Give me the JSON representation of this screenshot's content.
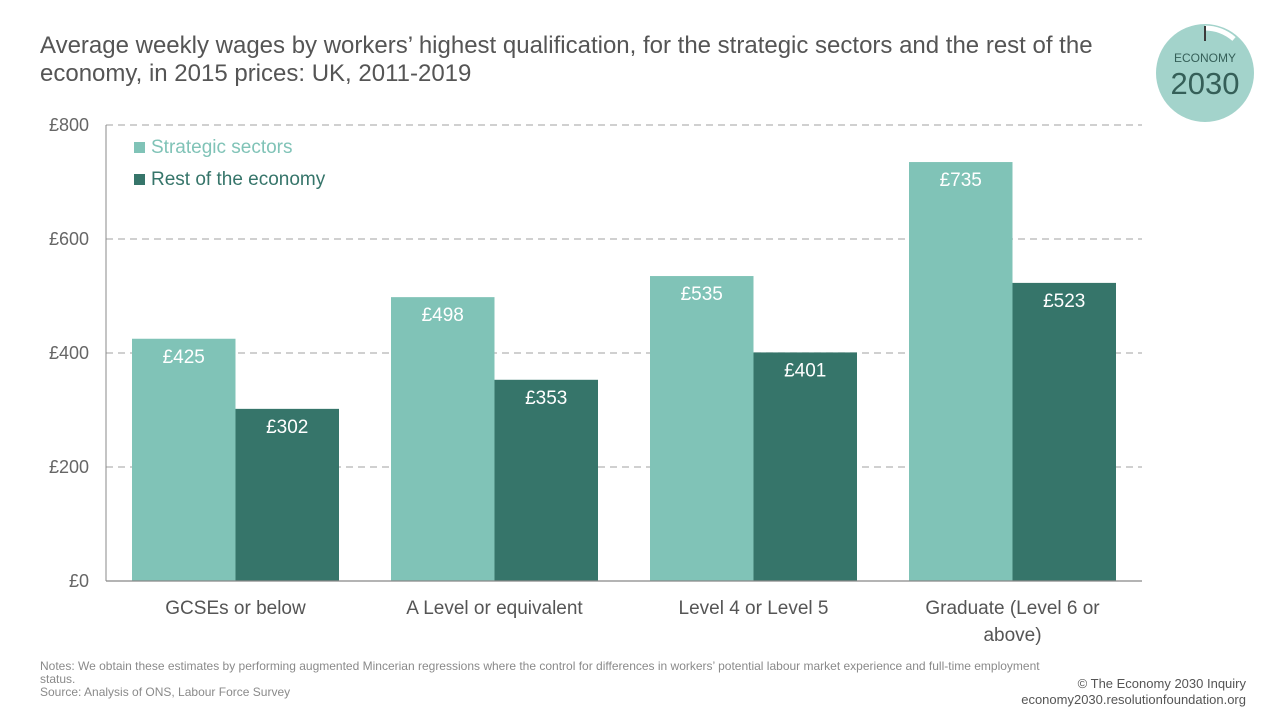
{
  "title": "Average weekly wages by workers’ highest qualification, for the strategic sectors and the rest of the economy, in 2015 prices: UK, 2011-2019",
  "logo": {
    "line1": "ECONOMY",
    "line2": "2030"
  },
  "colors": {
    "strategic": "#80c3b7",
    "rest": "#36756a",
    "grid": "#b5b5b5",
    "axis": "#888888"
  },
  "chart_data": {
    "type": "bar",
    "categories": [
      "GCSEs or below",
      "A Level or equivalent",
      "Level 4 or Level 5",
      "Graduate (Level 6 or above)"
    ],
    "series": [
      {
        "name": "Strategic sectors",
        "values": [
          425,
          498,
          535,
          735
        ],
        "labels": [
          "£425",
          "£498",
          "£535",
          "£735"
        ]
      },
      {
        "name": "Rest of the economy",
        "values": [
          302,
          353,
          401,
          523
        ],
        "labels": [
          "£302",
          "£353",
          "£401",
          "£523"
        ]
      }
    ],
    "yticks": [
      "£0",
      "£200",
      "£400",
      "£600",
      "£800"
    ],
    "ytick_values": [
      0,
      200,
      400,
      600,
      800
    ],
    "ylim": [
      0,
      800
    ],
    "grid": true,
    "legend_position": "top-left"
  },
  "notes": {
    "line1": "Notes: We obtain these estimates by performing augmented Mincerian regressions where the control for differences in workers’ potential labour market experience and full-time employment  status.",
    "line2": "Source: Analysis of ONS, Labour Force Survey"
  },
  "credit": {
    "line1": "© The Economy 2030 Inquiry",
    "line2": "economy2030.resolutionfoundation.org"
  }
}
